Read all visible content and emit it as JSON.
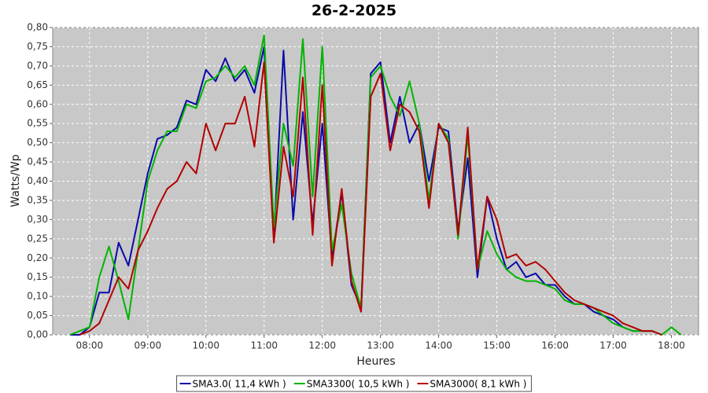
{
  "chart_data": {
    "type": "line",
    "title": "26-2-2025",
    "x_label": "Heures",
    "y_label": "Watts/Wp",
    "x": [
      "07:40",
      "07:50",
      "08:00",
      "08:10",
      "08:20",
      "08:30",
      "08:40",
      "08:50",
      "09:00",
      "09:10",
      "09:20",
      "09:30",
      "09:40",
      "09:50",
      "10:00",
      "10:10",
      "10:20",
      "10:30",
      "10:40",
      "10:50",
      "11:00",
      "11:10",
      "11:20",
      "11:30",
      "11:40",
      "11:50",
      "12:00",
      "12:10",
      "12:20",
      "12:30",
      "12:40",
      "12:50",
      "13:00",
      "13:10",
      "13:20",
      "13:30",
      "13:40",
      "13:50",
      "14:00",
      "14:10",
      "14:20",
      "14:30",
      "14:40",
      "14:50",
      "15:00",
      "15:10",
      "15:20",
      "15:30",
      "15:40",
      "15:50",
      "16:00",
      "16:10",
      "16:20",
      "16:30",
      "16:40",
      "16:50",
      "17:00",
      "17:10",
      "17:20",
      "17:30",
      "17:40",
      "17:50",
      "18:00",
      "18:10"
    ],
    "series": [
      {
        "name": "SMA3.0( 11,4 kWh )",
        "color": "#0a0aaa",
        "values": [
          0.0,
          0.0,
          0.02,
          0.11,
          0.11,
          0.24,
          0.18,
          0.3,
          0.42,
          0.51,
          0.52,
          0.54,
          0.61,
          0.6,
          0.69,
          0.66,
          0.72,
          0.66,
          0.69,
          0.63,
          0.75,
          0.25,
          0.74,
          0.3,
          0.58,
          0.29,
          0.55,
          0.2,
          0.37,
          0.13,
          0.07,
          0.68,
          0.71,
          0.5,
          0.62,
          0.5,
          0.55,
          0.4,
          0.54,
          0.53,
          0.27,
          0.46,
          0.15,
          0.36,
          0.25,
          0.17,
          0.19,
          0.15,
          0.16,
          0.13,
          0.13,
          0.1,
          0.08,
          0.08,
          0.06,
          0.05,
          0.04,
          0.02,
          0.01,
          0.01,
          0.01,
          0.0,
          null,
          null
        ]
      },
      {
        "name": "SMA3300( 10,5 kWh )",
        "color": "#00b400",
        "values": [
          0.0,
          0.01,
          0.02,
          0.15,
          0.23,
          0.14,
          0.04,
          0.22,
          0.4,
          0.48,
          0.53,
          0.53,
          0.6,
          0.59,
          0.66,
          0.67,
          0.7,
          0.67,
          0.7,
          0.65,
          0.78,
          0.28,
          0.55,
          0.44,
          0.77,
          0.36,
          0.75,
          0.22,
          0.34,
          0.16,
          0.07,
          0.67,
          0.7,
          0.62,
          0.57,
          0.66,
          0.55,
          0.35,
          0.55,
          0.51,
          0.25,
          0.52,
          0.17,
          0.27,
          0.21,
          0.17,
          0.15,
          0.14,
          0.14,
          0.13,
          0.12,
          0.09,
          0.08,
          0.08,
          0.07,
          0.05,
          0.03,
          0.02,
          0.01,
          0.01,
          0.01,
          0.0,
          0.02,
          0.0
        ]
      },
      {
        "name": "SMA3000( 8,1 kWh )",
        "color": "#b40000",
        "values": [
          null,
          0.0,
          0.01,
          0.03,
          0.09,
          0.15,
          0.12,
          0.22,
          0.27,
          0.33,
          0.38,
          0.4,
          0.45,
          0.42,
          0.55,
          0.48,
          0.55,
          0.55,
          0.62,
          0.49,
          0.71,
          0.24,
          0.49,
          0.36,
          0.67,
          0.26,
          0.65,
          0.18,
          0.38,
          0.14,
          0.06,
          0.62,
          0.68,
          0.48,
          0.6,
          0.58,
          0.53,
          0.33,
          0.55,
          0.5,
          0.26,
          0.54,
          0.17,
          0.36,
          0.3,
          0.2,
          0.21,
          0.18,
          0.19,
          0.17,
          0.14,
          0.11,
          0.09,
          0.08,
          0.07,
          0.06,
          0.05,
          0.03,
          0.02,
          0.01,
          0.01,
          0.0,
          null,
          null
        ]
      }
    ],
    "xlim": [
      "07:22",
      "18:28"
    ],
    "xticks": [
      "08:00",
      "09:00",
      "10:00",
      "11:00",
      "12:00",
      "13:00",
      "14:00",
      "15:00",
      "16:00",
      "17:00",
      "18:00"
    ],
    "ylim": [
      0,
      0.8
    ],
    "yticks": [
      {
        "value": 0,
        "label": "0,00"
      },
      {
        "value": 0.05,
        "label": "0,05"
      },
      {
        "value": 0.1,
        "label": "0,10"
      },
      {
        "value": 0.15,
        "label": "0,15"
      },
      {
        "value": 0.2,
        "label": "0,20"
      },
      {
        "value": 0.25,
        "label": "0,25"
      },
      {
        "value": 0.3,
        "label": "0,30"
      },
      {
        "value": 0.35,
        "label": "0,35"
      },
      {
        "value": 0.4,
        "label": "0,40"
      },
      {
        "value": 0.45,
        "label": "0,45"
      },
      {
        "value": 0.5,
        "label": "0,50"
      },
      {
        "value": 0.55,
        "label": "0,55"
      },
      {
        "value": 0.6,
        "label": "0,60"
      },
      {
        "value": 0.65,
        "label": "0,65"
      },
      {
        "value": 0.7,
        "label": "0,70"
      },
      {
        "value": 0.75,
        "label": "0,75"
      },
      {
        "value": 0.8,
        "label": "0,80"
      }
    ],
    "grid": true,
    "legend": "bottom"
  }
}
